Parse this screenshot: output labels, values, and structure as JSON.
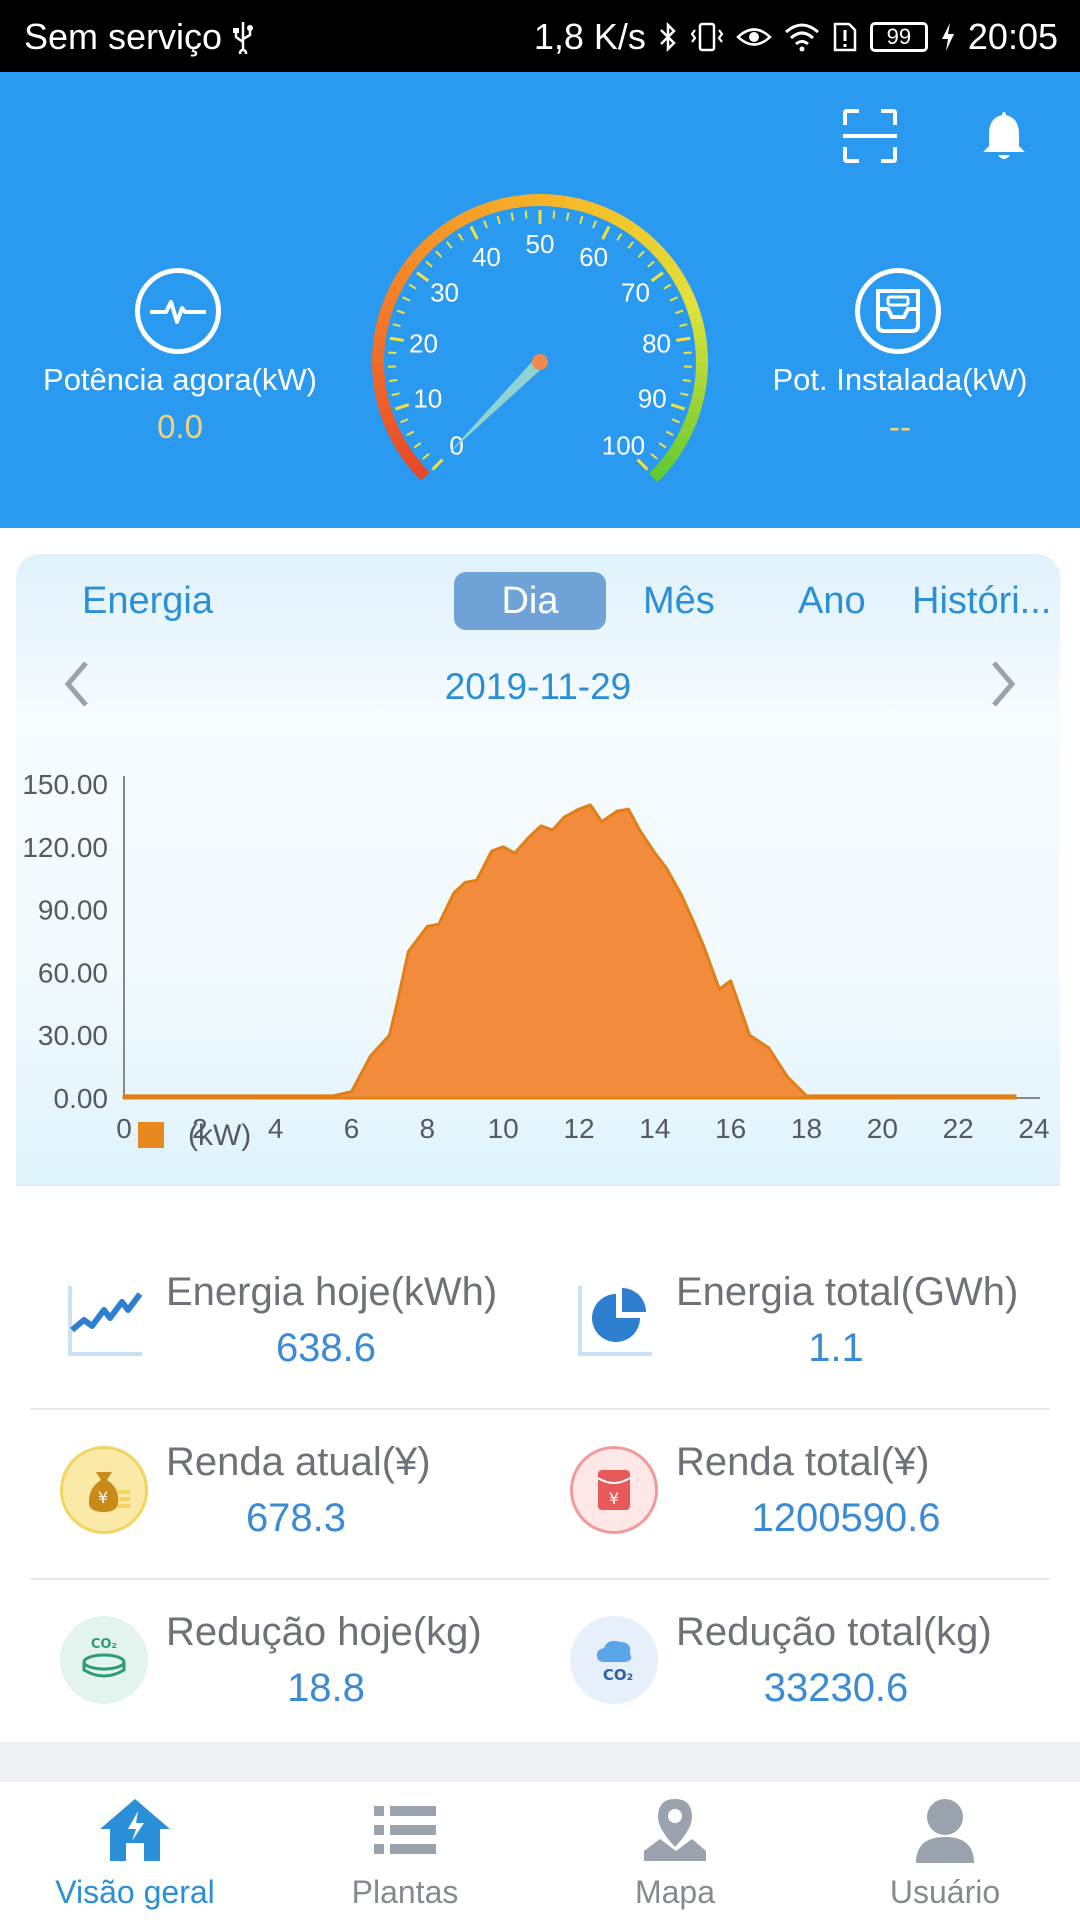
{
  "status_bar": {
    "carrier": "Sem serviço",
    "speed": "1,8 K/s",
    "battery": "99",
    "time": "20:05"
  },
  "header": {
    "power_now_label": "Potência agora(kW)",
    "power_now_value": "0.0",
    "installed_label": "Pot. Instalada(kW)",
    "installed_value": "--",
    "gauge_percent": "0.0%",
    "gauge_level": 0.0,
    "gauge_ticks": [
      "0",
      "10",
      "20",
      "30",
      "40",
      "50",
      "60",
      "70",
      "80",
      "90",
      "100"
    ]
  },
  "energy_card": {
    "title": "Energia",
    "tabs": [
      "Dia",
      "Mês",
      "Ano",
      "Históri..."
    ],
    "active_tab": "Dia",
    "date": "2019-11-29"
  },
  "chart_data": {
    "type": "area",
    "title": "",
    "xlabel": "",
    "ylabel": "",
    "legend": "(kW)",
    "legend_position": "bottom-left",
    "grid": false,
    "xlim": [
      0,
      24
    ],
    "ylim": [
      0,
      150
    ],
    "x_ticks": [
      "0",
      "2",
      "4",
      "6",
      "8",
      "10",
      "12",
      "14",
      "16",
      "18",
      "20",
      "22",
      "24"
    ],
    "y_ticks": [
      "0.00",
      "30.00",
      "60.00",
      "90.00",
      "120.00",
      "150.00"
    ],
    "series": [
      {
        "name": "(kW)",
        "color": "#f28c3c",
        "x": [
          0,
          2,
          4,
          5.5,
          6,
          6.5,
          7,
          7.2,
          7.5,
          8,
          8.3,
          8.7,
          9,
          9.3,
          9.7,
          10,
          10.3,
          10.7,
          11,
          11.3,
          11.6,
          12,
          12.3,
          12.6,
          13,
          13.3,
          13.6,
          14,
          14.3,
          14.7,
          15,
          15.3,
          15.7,
          16,
          16.5,
          17,
          17.5,
          18,
          19,
          20,
          22,
          23.5
        ],
        "values": [
          1,
          1,
          1,
          1,
          3,
          20,
          30,
          45,
          70,
          82,
          83,
          98,
          103,
          104,
          118,
          120,
          117,
          125,
          130,
          128,
          134,
          138,
          140,
          132,
          137,
          138,
          128,
          117,
          110,
          97,
          85,
          72,
          52,
          56,
          30,
          24,
          10,
          1,
          1,
          1,
          1,
          1
        ]
      }
    ]
  },
  "stats": {
    "energy_today_label": "Energia hoje(kWh)",
    "energy_today_value": "638.6",
    "energy_total_label": "Energia total(GWh)",
    "energy_total_value": "1.1",
    "income_now_label": "Renda atual(¥)",
    "income_now_value": "678.3",
    "income_total_label": "Renda total(¥)",
    "income_total_value": "1200590.6",
    "reduction_today_label": "Redução hoje(kg)",
    "reduction_today_value": "18.8",
    "reduction_total_label": "Redução total(kg)",
    "reduction_total_value": "33230.6"
  },
  "tabbar": {
    "overview": "Visão geral",
    "plants": "Plantas",
    "map": "Mapa",
    "user": "Usuário",
    "active": "overview"
  },
  "colors": {
    "header_bg": "#2a9af0",
    "accent": "#2a8fd6",
    "value_yellow": "#f5d27a",
    "chart_fill": "#f28c3c"
  }
}
